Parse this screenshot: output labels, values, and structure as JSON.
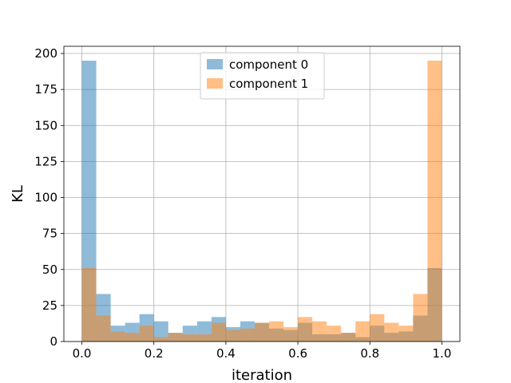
{
  "chart_data": {
    "type": "bar",
    "subtype": "histogram",
    "title": "",
    "xlabel": "iteration",
    "ylabel": "KL",
    "xlim": [
      -0.05,
      1.05
    ],
    "ylim": [
      0,
      205
    ],
    "grid": true,
    "legend_position": "top-center",
    "bin_edges": [
      0.0,
      0.04,
      0.08,
      0.12,
      0.16,
      0.2,
      0.24,
      0.28,
      0.32,
      0.36,
      0.4,
      0.44,
      0.48,
      0.52,
      0.56,
      0.6,
      0.64,
      0.68,
      0.72,
      0.76,
      0.8,
      0.84,
      0.88,
      0.92,
      0.96,
      1.0
    ],
    "xticks": [
      0.0,
      0.2,
      0.4,
      0.6,
      0.8,
      1.0
    ],
    "xtick_labels": [
      "0.0",
      "0.2",
      "0.4",
      "0.6",
      "0.8",
      "1.0"
    ],
    "yticks": [
      0,
      25,
      50,
      75,
      100,
      125,
      150,
      175,
      200
    ],
    "ytick_labels": [
      "0",
      "25",
      "50",
      "75",
      "100",
      "125",
      "150",
      "175",
      "200"
    ],
    "series": [
      {
        "name": "component 0",
        "color": "#1f77b4",
        "alpha": 0.5,
        "values": [
          195,
          33,
          11,
          13,
          19,
          14,
          6,
          11,
          14,
          17,
          10,
          14,
          13,
          9,
          8,
          13,
          5,
          5,
          6,
          3,
          11,
          6,
          7,
          18,
          51
        ]
      },
      {
        "name": "component 1",
        "color": "#ff7f0e",
        "alpha": 0.5,
        "values": [
          51,
          18,
          7,
          6,
          11,
          3,
          6,
          5,
          5,
          13,
          8,
          9,
          13,
          14,
          10,
          17,
          14,
          11,
          6,
          14,
          19,
          13,
          11,
          33,
          195
        ]
      }
    ]
  }
}
